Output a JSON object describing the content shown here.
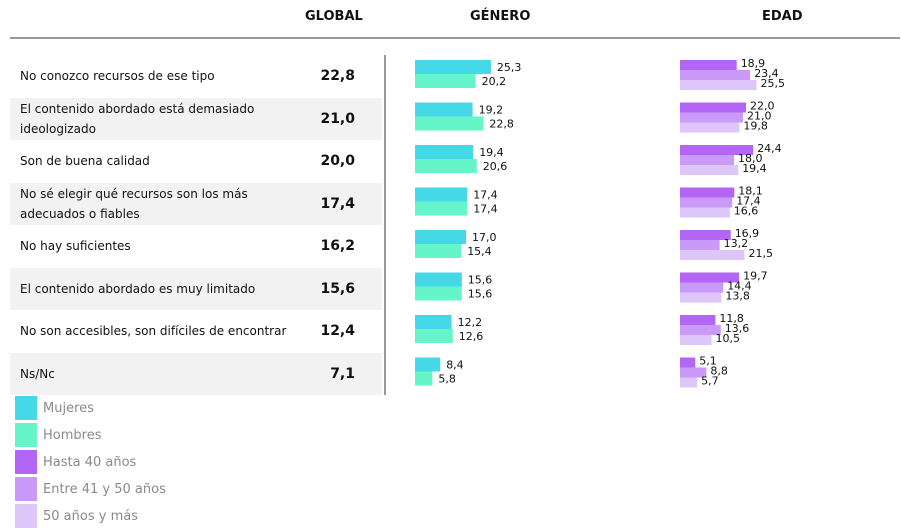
{
  "chart_data": {
    "type": "bar",
    "headers": [
      "GLOBAL",
      "GÉNERO",
      "EDAD"
    ],
    "categories": [
      "No conozco recursos de ese tipo",
      "El contenido abordado está demasiado ideologizado",
      "Son de buena calidad",
      "No sé elegir qué recursos son los más adecuados o fiables",
      "No hay suficientes",
      "El contenido abordado es muy limitado",
      "No son accesibles, son difíciles de encontrar",
      "Ns/Nc"
    ],
    "global": {
      "values": [
        22.8,
        21.0,
        20.0,
        17.4,
        16.2,
        15.6,
        12.4,
        7.1
      ],
      "value_labels": [
        "22,8",
        "21,0",
        "20,0",
        "17,4",
        "16,2",
        "15,6",
        "12,4",
        "7,1"
      ]
    },
    "gender_series": [
      {
        "name": "Mujeres",
        "color": "#45d9e8",
        "values": [
          25.3,
          19.2,
          19.4,
          17.4,
          17.0,
          15.6,
          12.2,
          8.4
        ],
        "value_labels": [
          "25,3",
          "19,2",
          "19,4",
          "17,4",
          "17,0",
          "15,6",
          "12,2",
          "8,4"
        ]
      },
      {
        "name": "Hombres",
        "color": "#66f5c9",
        "values": [
          20.2,
          22.8,
          20.6,
          17.4,
          15.4,
          15.6,
          12.6,
          5.8
        ],
        "value_labels": [
          "20,2",
          "22,8",
          "20,6",
          "17,4",
          "15,4",
          "15,6",
          "12,6",
          "5,8"
        ]
      }
    ],
    "age_series": [
      {
        "name": "Hasta 40 años",
        "color": "#b366f5",
        "values": [
          18.9,
          22.0,
          24.4,
          18.1,
          16.9,
          19.7,
          11.8,
          5.1
        ],
        "value_labels": [
          "18,9",
          "22,0",
          "24,4",
          "18,1",
          "16,9",
          "19,7",
          "11,8",
          "5,1"
        ]
      },
      {
        "name": "Entre 41 y 50 años",
        "color": "#c99af7",
        "values": [
          23.4,
          21.0,
          18.0,
          17.4,
          13.2,
          14.4,
          13.6,
          8.8
        ],
        "value_labels": [
          "23,4",
          "21,0",
          "18,0",
          "17,4",
          "13,2",
          "14,4",
          "13,6",
          "8,8"
        ]
      },
      {
        "name": "50 años y más",
        "color": "#ddc6fa",
        "values": [
          25.5,
          19.8,
          19.4,
          16.6,
          21.5,
          13.8,
          10.5,
          5.7
        ],
        "value_labels": [
          "25,5",
          "19,8",
          "19,4",
          "16,6",
          "21,5",
          "13,8",
          "10,5",
          "5,7"
        ]
      }
    ]
  }
}
